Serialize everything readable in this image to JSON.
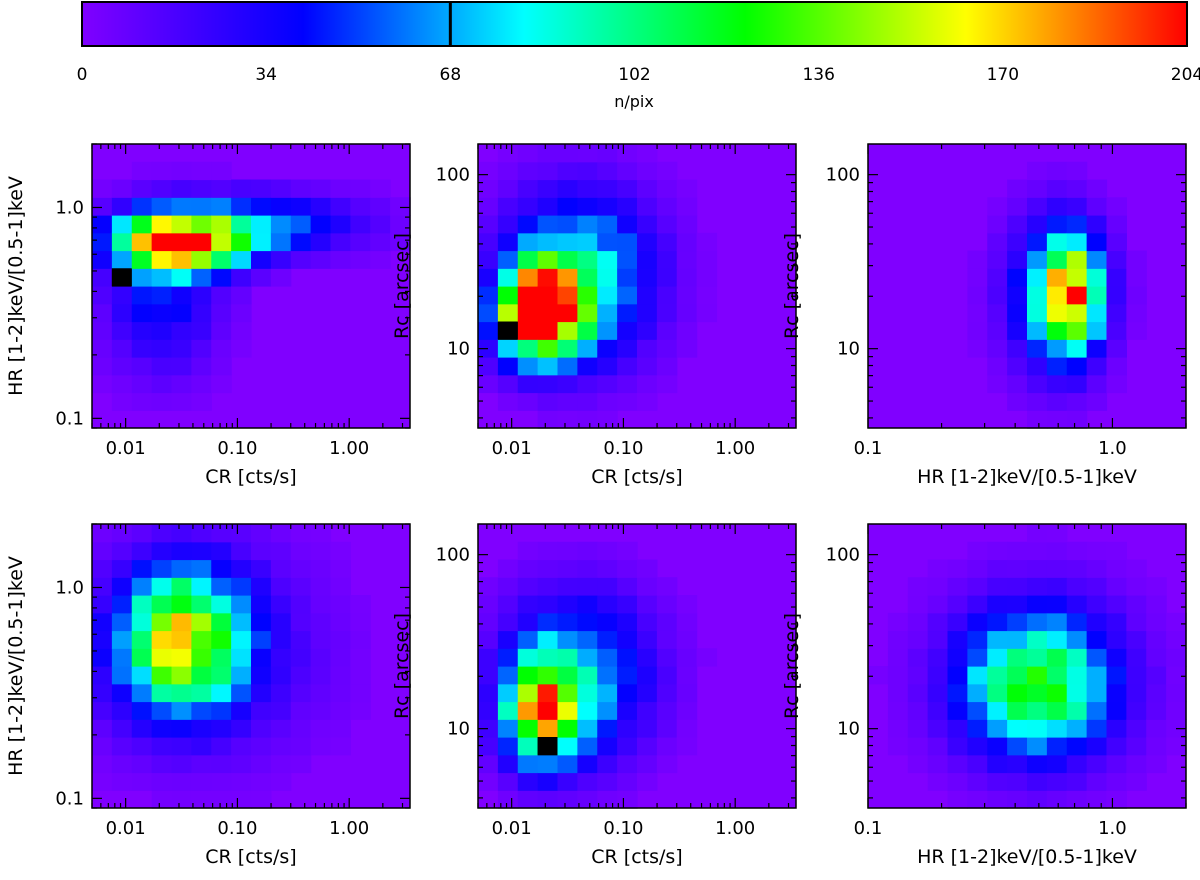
{
  "colorbar": {
    "label": "n/pix",
    "min": 0,
    "max": 204,
    "ticks": [
      "0",
      "34",
      "68",
      "102",
      "136",
      "170",
      "204"
    ],
    "marker_value": 68,
    "colormap": [
      "#8000ff",
      "#0000ff",
      "#00ffff",
      "#00ff00",
      "#ffff00",
      "#ff0000"
    ]
  },
  "chart_data": [
    {
      "type": "heatmap",
      "title": "",
      "xlabel": "CR [cts/s]",
      "ylabel": "HR [1-2]keV/[0.5-1]keV",
      "xscale": "log",
      "yscale": "log",
      "xlim": [
        0.005,
        3.5
      ],
      "ylim": [
        0.09,
        2.0
      ],
      "xticks": [
        "0.01",
        "0.10",
        "1.00"
      ],
      "xtick_values": [
        0.01,
        0.1,
        1.0
      ],
      "yticks": [
        "0.1",
        "1.0"
      ],
      "ytick_values": [
        0.1,
        1.0
      ],
      "nx": 16,
      "ny": 16,
      "black_cell": [
        1,
        8
      ],
      "blobs": [
        {
          "cx": 4.5,
          "cy": 10.5,
          "sx": 2.2,
          "sy": 1.1,
          "amp": 195
        },
        {
          "cx": 3.5,
          "cy": 7.5,
          "sx": 2.0,
          "sy": 3.0,
          "amp": 42
        },
        {
          "cx": 8.5,
          "cy": 11.5,
          "sx": 3.5,
          "sy": 1.2,
          "amp": 55
        }
      ]
    },
    {
      "type": "heatmap",
      "title": "",
      "xlabel": "CR [cts/s]",
      "ylabel": "Rc [arcsec]",
      "xscale": "log",
      "yscale": "log",
      "xlim": [
        0.005,
        3.5
      ],
      "ylim": [
        3.5,
        150
      ],
      "xticks": [
        "0.01",
        "0.10",
        "1.00"
      ],
      "xtick_values": [
        0.01,
        0.1,
        1.0
      ],
      "yticks": [
        "10",
        "100"
      ],
      "ytick_values": [
        10,
        100
      ],
      "nx": 16,
      "ny": 16,
      "black_cell": [
        1,
        5
      ],
      "blobs": [
        {
          "cx": 3.2,
          "cy": 7.0,
          "sx": 1.3,
          "sy": 1.6,
          "amp": 180
        },
        {
          "cx": 5.0,
          "cy": 8.5,
          "sx": 2.6,
          "sy": 3.2,
          "amp": 90
        },
        {
          "cx": 3.0,
          "cy": 5.5,
          "sx": 1.6,
          "sy": 1.6,
          "amp": 60
        }
      ]
    },
    {
      "type": "heatmap",
      "title": "",
      "xlabel": "HR [1-2]keV/[0.5-1]keV",
      "ylabel": "Rc [arcsec]",
      "xscale": "log",
      "yscale": "log",
      "xlim": [
        0.1,
        2.0
      ],
      "ylim": [
        3.5,
        150
      ],
      "xticks": [
        "0.1",
        "1.0"
      ],
      "xtick_values": [
        0.1,
        1.0
      ],
      "yticks": [
        "10",
        "100"
      ],
      "ytick_values": [
        10,
        100
      ],
      "nx": 16,
      "ny": 16,
      "black_cell": null,
      "blobs": [
        {
          "cx": 10.3,
          "cy": 7.5,
          "sx": 0.9,
          "sy": 2.0,
          "amp": 140
        },
        {
          "cx": 9.5,
          "cy": 7.5,
          "sx": 1.7,
          "sy": 3.0,
          "amp": 75
        }
      ]
    },
    {
      "type": "heatmap",
      "title": "",
      "xlabel": "CR [cts/s]",
      "ylabel": "HR [1-2]keV/[0.5-1]keV",
      "xscale": "log",
      "yscale": "log",
      "xlim": [
        0.005,
        3.5
      ],
      "ylim": [
        0.09,
        2.0
      ],
      "xticks": [
        "0.01",
        "0.10",
        "1.00"
      ],
      "xtick_values": [
        0.01,
        0.1,
        1.0
      ],
      "yticks": [
        "0.1",
        "1.0"
      ],
      "ytick_values": [
        0.1,
        1.0
      ],
      "nx": 16,
      "ny": 16,
      "black_cell": null,
      "blobs": [
        {
          "cx": 4.5,
          "cy": 9.5,
          "sx": 2.0,
          "sy": 2.6,
          "amp": 135
        },
        {
          "cx": 5.5,
          "cy": 9.0,
          "sx": 4.0,
          "sy": 4.0,
          "amp": 35
        }
      ]
    },
    {
      "type": "heatmap",
      "title": "",
      "xlabel": "CR [cts/s]",
      "ylabel": "Rc [arcsec]",
      "xscale": "log",
      "yscale": "log",
      "xlim": [
        0.005,
        3.5
      ],
      "ylim": [
        3.5,
        150
      ],
      "xticks": [
        "0.01",
        "0.10",
        "1.00"
      ],
      "xtick_values": [
        0.01,
        0.1,
        1.0
      ],
      "yticks": [
        "10",
        "100"
      ],
      "ytick_values": [
        10,
        100
      ],
      "nx": 16,
      "ny": 16,
      "black_cell": [
        3,
        3
      ],
      "blobs": [
        {
          "cx": 3.3,
          "cy": 5.5,
          "sx": 1.3,
          "sy": 2.0,
          "amp": 150
        },
        {
          "cx": 5.0,
          "cy": 7.5,
          "sx": 2.6,
          "sy": 3.2,
          "amp": 70
        }
      ]
    },
    {
      "type": "heatmap",
      "title": "",
      "xlabel": "HR [1-2]keV/[0.5-1]keV",
      "ylabel": "Rc [arcsec]",
      "xscale": "log",
      "yscale": "log",
      "xlim": [
        0.1,
        2.0
      ],
      "ylim": [
        3.5,
        150
      ],
      "xticks": [
        "0.1",
        "1.0"
      ],
      "xtick_values": [
        0.1,
        1.0
      ],
      "yticks": [
        "10",
        "100"
      ],
      "ytick_values": [
        10,
        100
      ],
      "nx": 16,
      "ny": 16,
      "black_cell": null,
      "blobs": [
        {
          "cx": 8.5,
          "cy": 7.0,
          "sx": 2.5,
          "sy": 2.6,
          "amp": 105
        },
        {
          "cx": 8.5,
          "cy": 7.5,
          "sx": 3.6,
          "sy": 3.8,
          "amp": 25
        }
      ]
    }
  ]
}
